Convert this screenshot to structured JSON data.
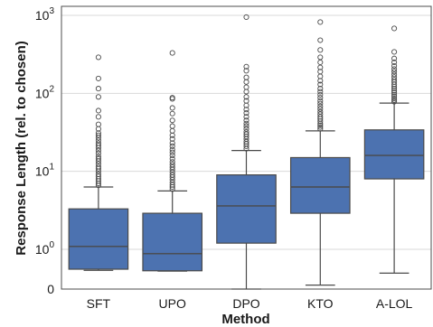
{
  "chart_data": {
    "type": "box",
    "xlabel": "Method",
    "ylabel": "Response Length (rel. to chosen)",
    "yscale": "symlog",
    "grid": "horizontal",
    "box_color": "#4c72b0",
    "yticks": [
      {
        "value": 0,
        "base": "0",
        "exp": ""
      },
      {
        "value": 1,
        "base": "10",
        "exp": "0"
      },
      {
        "value": 10,
        "base": "10",
        "exp": "1"
      },
      {
        "value": 100,
        "base": "10",
        "exp": "2"
      },
      {
        "value": 1000,
        "base": "10",
        "exp": "3"
      }
    ],
    "categories": [
      "SFT",
      "UPO",
      "DPO",
      "KTO",
      "A-LOL"
    ],
    "boxes": [
      {
        "label": "SFT",
        "whislo": 0.47,
        "q1": 0.5,
        "med": 1.09,
        "q3": 3.3,
        "whishi": 6.3,
        "outliers": [
          6.6,
          7,
          7.5,
          8,
          8.6,
          9.2,
          10,
          10.8,
          11.5,
          12.5,
          13.5,
          14.5,
          15.5,
          17,
          18.5,
          20,
          21.5,
          23,
          25,
          27,
          29,
          31,
          35,
          40,
          50,
          60,
          90,
          115,
          155,
          290
        ]
      },
      {
        "label": "UPO",
        "whislo": 0.45,
        "q1": 0.46,
        "med": 0.89,
        "q3": 2.9,
        "whishi": 5.6,
        "outliers": [
          5.9,
          6.3,
          6.7,
          7.2,
          7.8,
          8.4,
          9,
          9.7,
          10.5,
          11.3,
          12.2,
          13.2,
          14.5,
          16,
          17.5,
          19,
          21,
          23,
          26,
          29,
          33,
          38,
          45,
          55,
          65,
          85,
          88,
          330
        ]
      },
      {
        "label": "DPO",
        "whislo": 0.0,
        "q1": 1.2,
        "med": 3.6,
        "q3": 9.0,
        "whishi": 18.5,
        "outliers": [
          19.5,
          21,
          22.5,
          24,
          26,
          28,
          30,
          32,
          35,
          38,
          41,
          45,
          50,
          56,
          62,
          70,
          80,
          90,
          105,
          120,
          140,
          160,
          195,
          220,
          950
        ]
      },
      {
        "label": "KTO",
        "whislo": 0.1,
        "q1": 2.9,
        "med": 6.3,
        "q3": 15.0,
        "whishi": 33,
        "outliers": [
          35,
          37,
          39,
          41,
          44,
          47,
          50,
          54,
          58,
          63,
          68,
          74,
          80,
          88,
          96,
          105,
          115,
          130,
          145,
          165,
          190,
          215,
          250,
          290,
          360,
          480,
          820
        ]
      },
      {
        "label": "A-LOL",
        "whislo": 0.4,
        "q1": 8.0,
        "med": 16.0,
        "q3": 34,
        "whishi": 75,
        "outliers": [
          78,
          82,
          86,
          91,
          96,
          102,
          108,
          115,
          122,
          130,
          140,
          150,
          162,
          175,
          190,
          205,
          225,
          250,
          280,
          340,
          680
        ]
      }
    ]
  }
}
